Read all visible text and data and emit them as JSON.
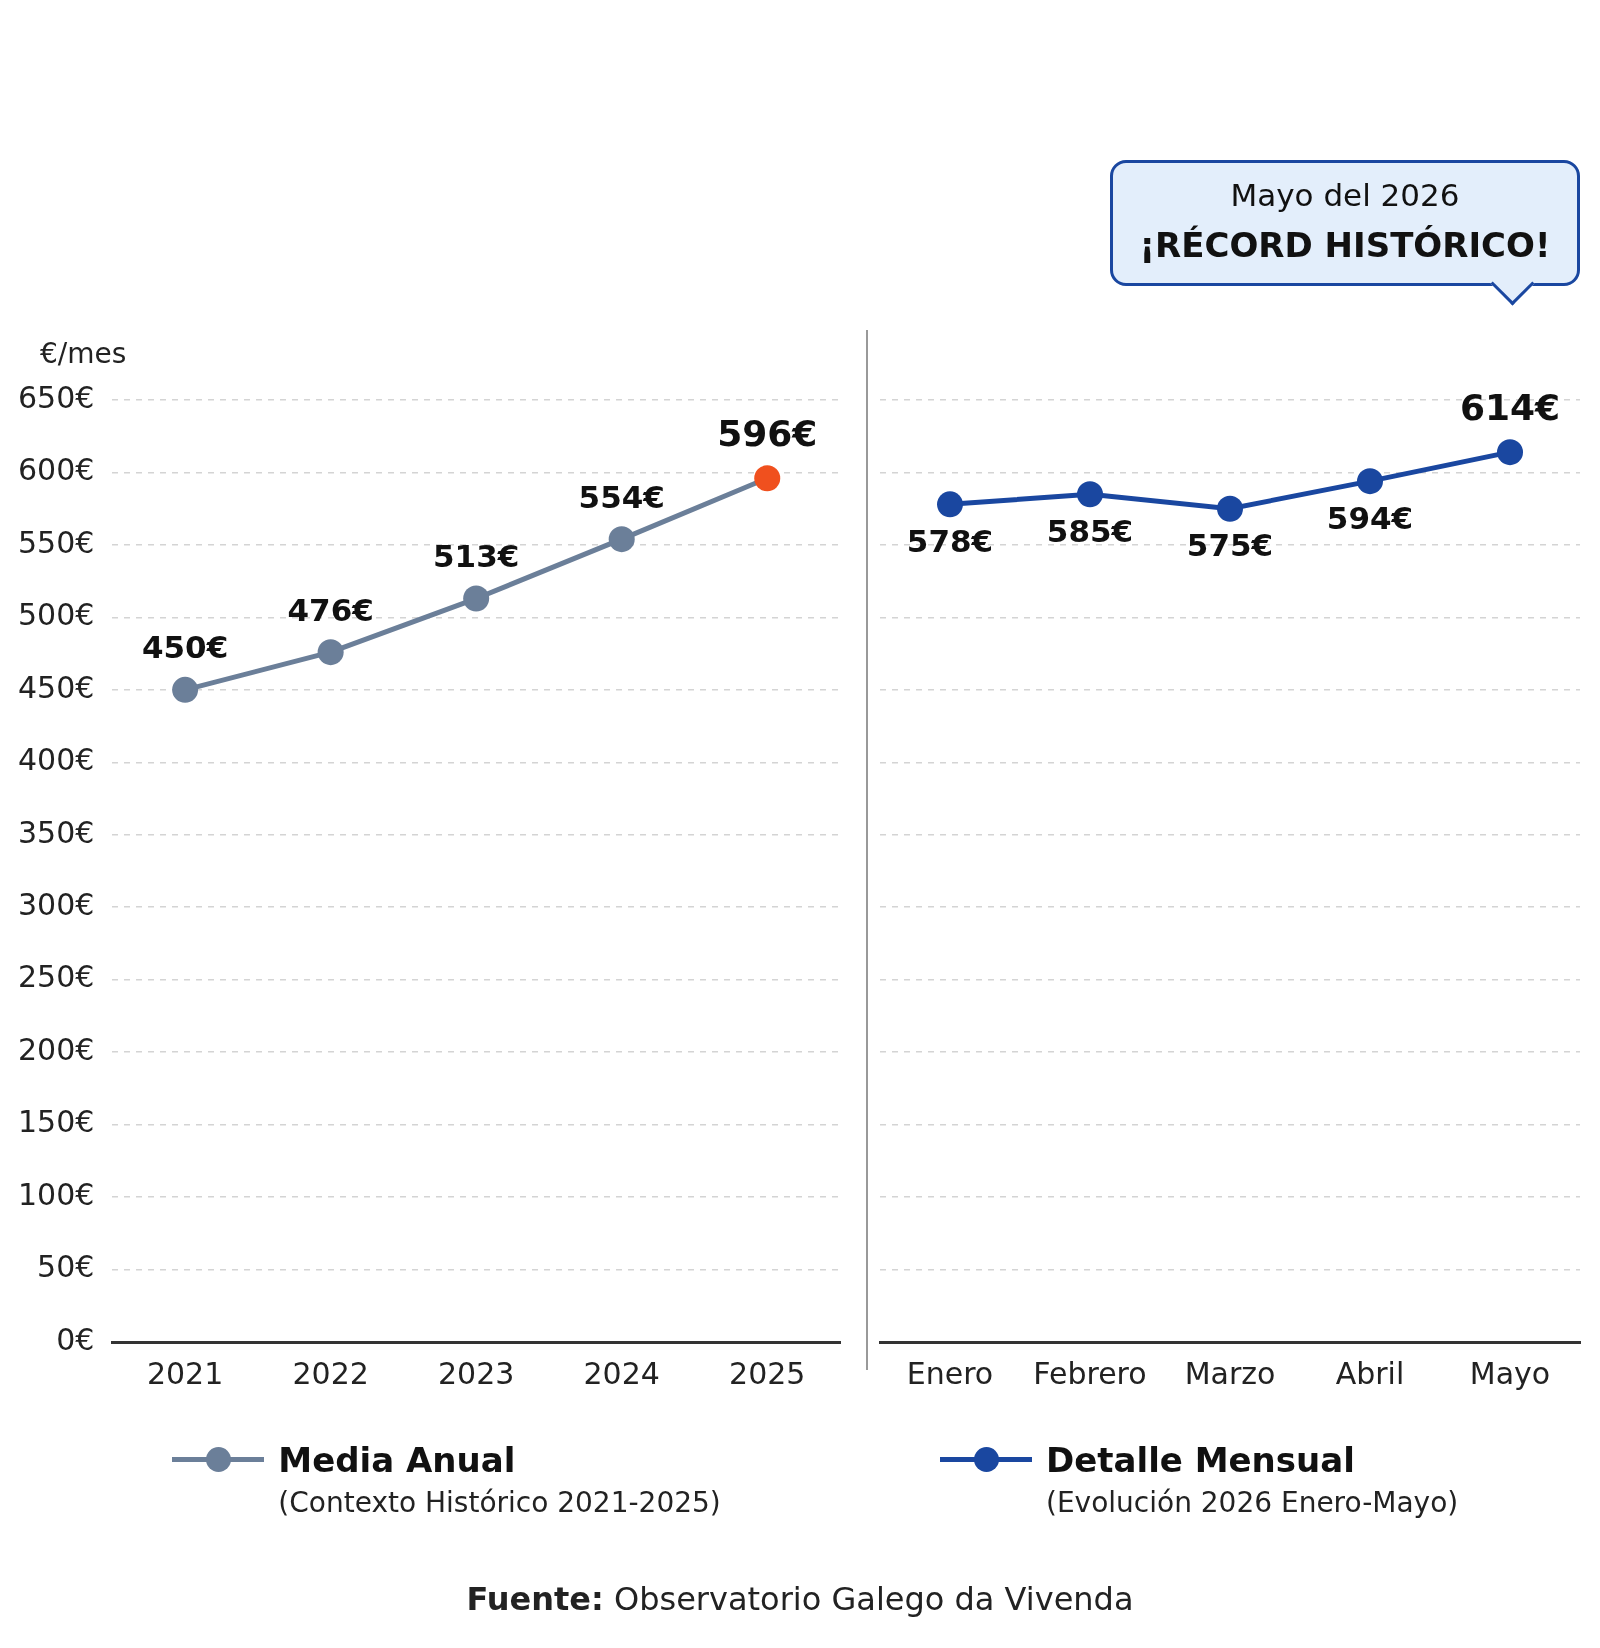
{
  "chart_data": [
    {
      "type": "line",
      "ylabel": "€/mes",
      "categories": [
        "2021",
        "2022",
        "2023",
        "2024",
        "2025"
      ],
      "series": [
        {
          "name": "Media Anual",
          "color": "#6b7f99",
          "colors": [
            "#6b7f99",
            "#6b7f99",
            "#6b7f99",
            "#6b7f99",
            "#f0501e"
          ],
          "values": [
            450,
            476,
            513,
            554,
            596
          ],
          "value_labels": [
            "450€",
            "476€",
            "513€",
            "554€",
            "596€"
          ]
        }
      ],
      "ylim": [
        0,
        650
      ],
      "yticks": [
        {
          "value": 0,
          "label": "0€"
        },
        {
          "value": 50,
          "label": "50€"
        },
        {
          "value": 100,
          "label": "100€"
        },
        {
          "value": 150,
          "label": "150€"
        },
        {
          "value": 200,
          "label": "200€"
        },
        {
          "value": 250,
          "label": "250€"
        },
        {
          "value": 300,
          "label": "300€"
        },
        {
          "value": 350,
          "label": "350€"
        },
        {
          "value": 400,
          "label": "400€"
        },
        {
          "value": 450,
          "label": "450€"
        },
        {
          "value": 500,
          "label": "500€"
        },
        {
          "value": 550,
          "label": "550€"
        },
        {
          "value": 600,
          "label": "600€"
        },
        {
          "value": 650,
          "label": "650€"
        }
      ],
      "grid": "y",
      "legend": "bottom",
      "marker": "circle",
      "line_style": "solid",
      "annotations": [
        "(Contexto Histórico 2021-2025)",
        "Fuente: Observatorio Galego da Vivenda"
      ]
    },
    {
      "type": "line",
      "categories": [
        "Enero",
        "Febrero",
        "Marzo",
        "Abril",
        "Mayo"
      ],
      "series": [
        {
          "name": "Detalle Mensual",
          "color": "#1a47a0",
          "values": [
            578,
            585,
            575,
            594,
            614
          ],
          "value_labels": [
            "578€",
            "585€",
            "575€",
            "594€",
            "614€"
          ]
        }
      ],
      "ylim": [
        0,
        650
      ],
      "yticks": [
        0,
        50,
        100,
        150,
        200,
        250,
        300,
        350,
        400,
        450,
        500,
        550,
        600,
        650
      ],
      "tick_labels": "x",
      "grid": "y",
      "legend": "bottom",
      "marker": "circle",
      "line_style": "solid",
      "annotations": [
        "(Evolución 2026 Enero-Mayo)",
        "Mayo del 2026",
        "¡RÉCORD HISTÓRICO!"
      ]
    }
  ]
}
